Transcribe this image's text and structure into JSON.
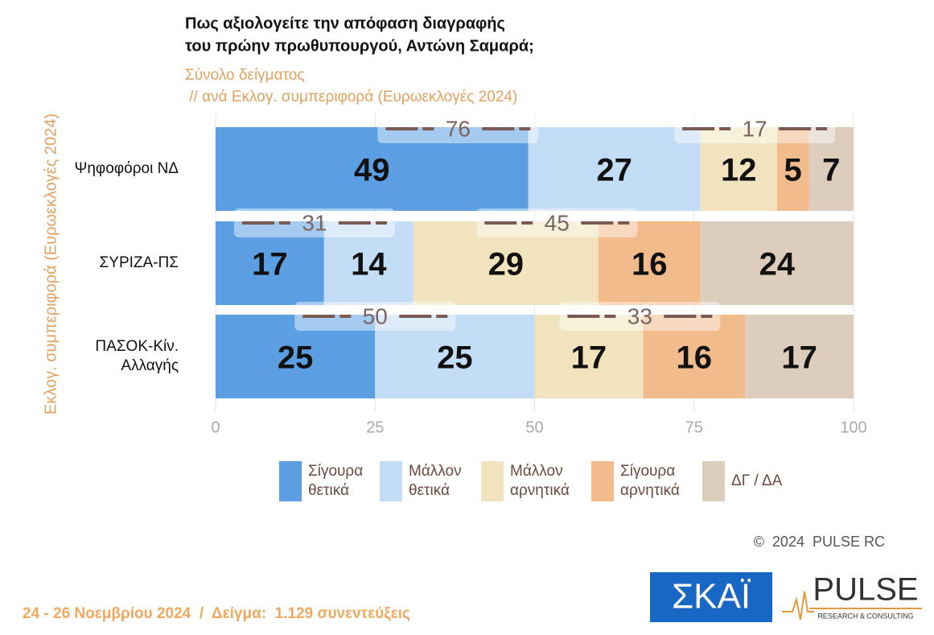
{
  "chart_data": {
    "type": "stacked-bar-horizontal",
    "title": [
      "Πως αξιολογείτε  την απόφαση διαγραφής",
      "του πρώην πρωθυπουργού, Αντώνη Σαμαρά;"
    ],
    "subtitle": [
      "Σύνολο δείγματος",
      " // ανά Εκλογ. συμπεριφορά (Ευρωεκλογές 2024)"
    ],
    "y_label": "Εκλογ. συμπεριφορά (Ευρωεκλογές 2024)",
    "categories": [
      "Ψηφοφόροι ΝΔ",
      "ΣΥΡΙΖΑ-ΠΣ",
      "ΠΑΣΟΚ-Κίν. Αλλαγής"
    ],
    "series": [
      {
        "name": "Σίγουρα θετικά",
        "color": "#5b9fe2",
        "values": [
          49,
          17,
          25
        ]
      },
      {
        "name": "Μάλλον θετικά",
        "color": "#c3ddf6",
        "values": [
          27,
          14,
          25
        ]
      },
      {
        "name": "Μάλλον αρνητικά",
        "color": "#f1e3bd",
        "values": [
          12,
          29,
          17
        ]
      },
      {
        "name": "Σίγουρα αρνητικά",
        "color": "#f2bb8c",
        "values": [
          5,
          16,
          16
        ]
      },
      {
        "name": "ΔΓ / ΔΑ",
        "color": "#dccdbd",
        "values": [
          7,
          24,
          17
        ]
      }
    ],
    "positive_totals": [
      76,
      31,
      50
    ],
    "negative_totals": [
      17,
      45,
      33
    ],
    "xlim": [
      0,
      100
    ],
    "xticks": [
      0,
      25,
      50,
      75,
      100
    ],
    "grid": true
  },
  "footer": {
    "fieldwork": "24 - 26 Νοεμβρίου 2024  /  Δείγμα:  1.129 συνεντεύξεις",
    "copyright": "©  2024  PULSE RC"
  },
  "logos": {
    "skai": "ΣΚΑΪ",
    "pulse": "PULSE",
    "pulse_sub": "RESEARCH & CONSULTING"
  }
}
